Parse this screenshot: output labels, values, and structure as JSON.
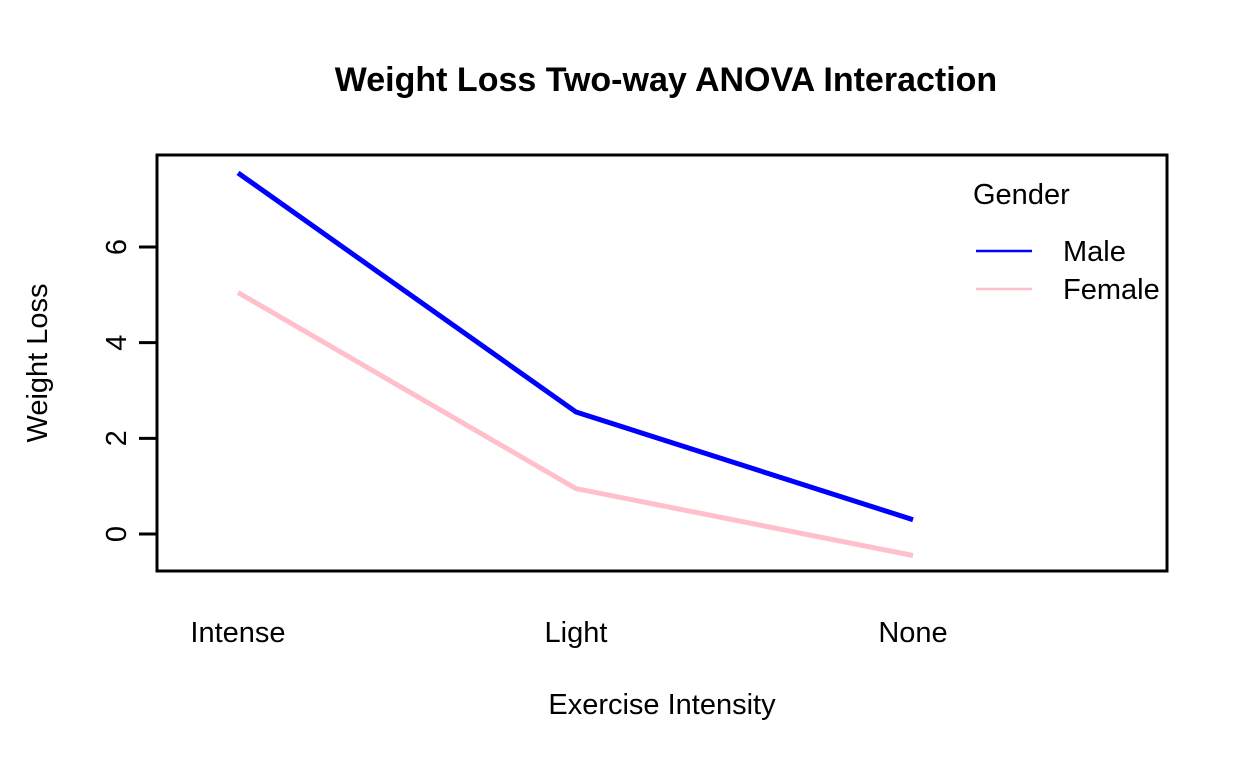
{
  "figure": {
    "background": "#FFFFFF"
  },
  "chart_data": {
    "type": "line",
    "title": "Weight Loss Two-way ANOVA Interaction",
    "xlabel": "Exercise Intensity",
    "ylabel": "Weight Loss",
    "categories": [
      "Intense",
      "Light",
      "None"
    ],
    "y_ticks": [
      0,
      2,
      4,
      6
    ],
    "ylim": [
      -0.8,
      7.9
    ],
    "grid": false,
    "legend": {
      "title": "Gender",
      "position": "top-right"
    },
    "series": [
      {
        "name": "Male",
        "color": "#0000FF",
        "values": [
          7.55,
          2.55,
          0.3
        ]
      },
      {
        "name": "Female",
        "color": "#FFC0CB",
        "values": [
          5.05,
          0.95,
          -0.45
        ]
      }
    ],
    "axis_color": "#000000",
    "text_color": "#000000"
  }
}
